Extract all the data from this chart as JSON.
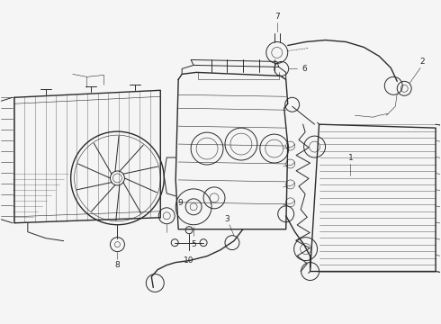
{
  "bg_color": "#f5f5f5",
  "line_color": "#2a2a2a",
  "label_color": "#111111",
  "figsize": [
    4.9,
    3.6
  ],
  "dpi": 100,
  "lw_thick": 1.0,
  "lw_main": 0.7,
  "lw_thin": 0.4,
  "label_fs": 6.5
}
